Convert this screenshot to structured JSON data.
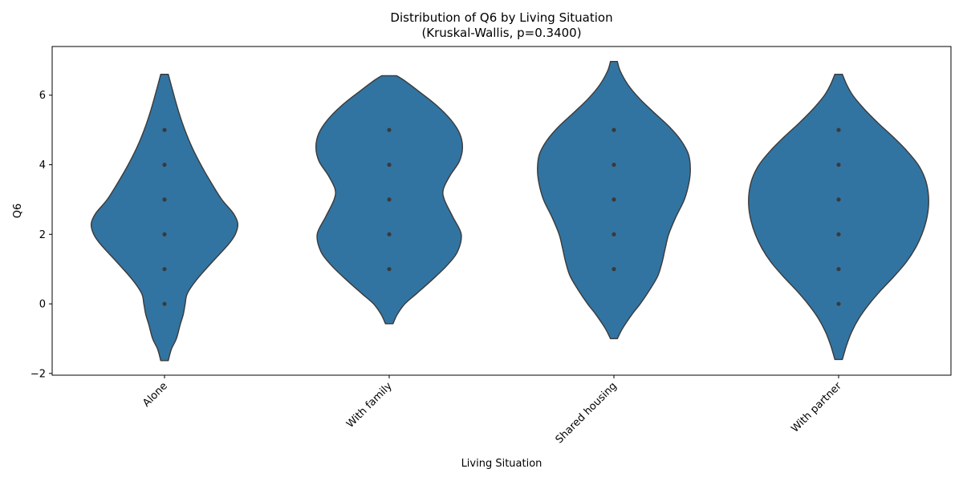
{
  "chart_data": {
    "type": "violin",
    "title": "Distribution of Q6 by Living Situation",
    "subtitle": "(Kruskal-Wallis, p=0.3400)",
    "xlabel": "Living Situation",
    "ylabel": "Q6",
    "categories": [
      "Alone",
      "With family",
      "Shared housing",
      "With partner"
    ],
    "ylim": [
      -2.05,
      7.4
    ],
    "yticks": [
      -2,
      0,
      2,
      4,
      6
    ],
    "grid": false,
    "colors": {
      "violin_fill": "#3274a1",
      "violin_edge": "#3a3a3a",
      "point": "#3a3a3a"
    },
    "violins": [
      {
        "category": "Alone",
        "profile": [
          [
            -1.63,
            0.12
          ],
          [
            -1.3,
            0.22
          ],
          [
            -1.0,
            0.38
          ],
          [
            -0.6,
            0.5
          ],
          [
            -0.3,
            0.6
          ],
          [
            0.0,
            0.66
          ],
          [
            0.3,
            0.73
          ],
          [
            0.7,
            1.03
          ],
          [
            1.2,
            1.52
          ],
          [
            1.7,
            2.03
          ],
          [
            2.0,
            2.26
          ],
          [
            2.3,
            2.34
          ],
          [
            2.6,
            2.2
          ],
          [
            3.0,
            1.83
          ],
          [
            3.5,
            1.48
          ],
          [
            4.0,
            1.16
          ],
          [
            4.5,
            0.88
          ],
          [
            5.0,
            0.65
          ],
          [
            5.5,
            0.46
          ],
          [
            6.0,
            0.3
          ],
          [
            6.6,
            0.12
          ]
        ],
        "points": [
          0,
          1,
          2,
          3,
          4,
          5
        ]
      },
      {
        "category": "With family",
        "profile": [
          [
            -0.57,
            0.12
          ],
          [
            -0.3,
            0.26
          ],
          [
            0.0,
            0.5
          ],
          [
            0.3,
            0.88
          ],
          [
            0.7,
            1.38
          ],
          [
            1.1,
            1.84
          ],
          [
            1.5,
            2.18
          ],
          [
            2.0,
            2.3
          ],
          [
            2.5,
            2.03
          ],
          [
            3.0,
            1.76
          ],
          [
            3.3,
            1.73
          ],
          [
            3.7,
            1.95
          ],
          [
            4.1,
            2.24
          ],
          [
            4.5,
            2.34
          ],
          [
            4.9,
            2.25
          ],
          [
            5.3,
            1.96
          ],
          [
            5.7,
            1.52
          ],
          [
            6.1,
            0.96
          ],
          [
            6.4,
            0.52
          ],
          [
            6.56,
            0.24
          ]
        ],
        "points": [
          1,
          2,
          3,
          4,
          5
        ]
      },
      {
        "category": "Shared housing",
        "profile": [
          [
            -1.0,
            0.11
          ],
          [
            -0.7,
            0.28
          ],
          [
            -0.3,
            0.58
          ],
          [
            0.0,
            0.84
          ],
          [
            0.4,
            1.14
          ],
          [
            0.8,
            1.4
          ],
          [
            1.2,
            1.54
          ],
          [
            1.6,
            1.64
          ],
          [
            2.0,
            1.75
          ],
          [
            2.5,
            1.98
          ],
          [
            3.0,
            2.25
          ],
          [
            3.5,
            2.4
          ],
          [
            3.9,
            2.44
          ],
          [
            4.3,
            2.38
          ],
          [
            4.7,
            2.14
          ],
          [
            5.1,
            1.76
          ],
          [
            5.5,
            1.28
          ],
          [
            5.9,
            0.82
          ],
          [
            6.3,
            0.45
          ],
          [
            6.7,
            0.2
          ],
          [
            6.97,
            0.11
          ]
        ],
        "points": [
          1,
          2,
          3,
          4,
          5
        ]
      },
      {
        "category": "With partner",
        "profile": [
          [
            -1.6,
            0.12
          ],
          [
            -1.2,
            0.25
          ],
          [
            -0.8,
            0.42
          ],
          [
            -0.4,
            0.66
          ],
          [
            0.0,
            0.98
          ],
          [
            0.4,
            1.36
          ],
          [
            0.8,
            1.78
          ],
          [
            1.2,
            2.16
          ],
          [
            1.6,
            2.45
          ],
          [
            2.0,
            2.66
          ],
          [
            2.4,
            2.8
          ],
          [
            2.8,
            2.87
          ],
          [
            3.2,
            2.86
          ],
          [
            3.6,
            2.76
          ],
          [
            4.0,
            2.54
          ],
          [
            4.4,
            2.18
          ],
          [
            4.8,
            1.74
          ],
          [
            5.2,
            1.26
          ],
          [
            5.6,
            0.82
          ],
          [
            6.0,
            0.45
          ],
          [
            6.3,
            0.26
          ],
          [
            6.6,
            0.12
          ]
        ],
        "points": [
          0,
          1,
          2,
          3,
          4,
          5
        ]
      }
    ]
  }
}
